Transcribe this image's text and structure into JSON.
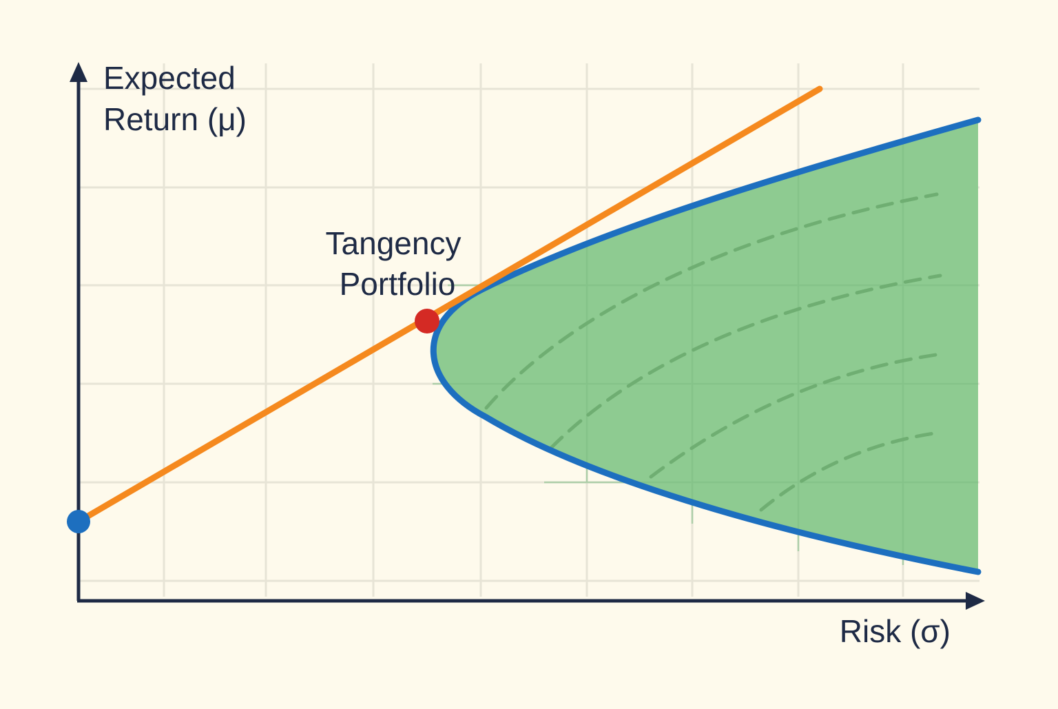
{
  "diagram": {
    "y_axis_label": [
      "Expected",
      "Return (μ)"
    ],
    "x_axis_label": "Risk (σ)",
    "annotation": [
      "Tangency",
      "Portfolio"
    ],
    "colors": {
      "background": "#fefaec",
      "grid": "#e7e4d6",
      "axis": "#1e2a45",
      "capital_market_line": "#f5891e",
      "efficient_frontier": "#1d6fbf",
      "feasible_region": "#8cca8f",
      "feasible_region_dashes": "#6fae72",
      "tangency_point": "#d42a24",
      "risk_free_point": "#1d6fbf",
      "text": "#1e2a45"
    }
  }
}
